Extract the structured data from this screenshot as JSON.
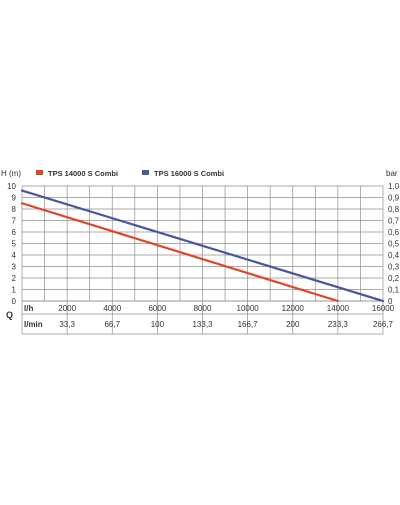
{
  "chart_data": {
    "type": "line",
    "title": "",
    "ylabel_left": "H (m)",
    "ylabel_right": "bar",
    "xlabel_row1": "l/h",
    "xlabel_row2": "l/min",
    "flow_symbol": "Q",
    "xlim": [
      0,
      16000
    ],
    "ylim": [
      0,
      10
    ],
    "y_ticks_left": [
      "0",
      "1",
      "2",
      "3",
      "4",
      "5",
      "6",
      "7",
      "8",
      "9",
      "10"
    ],
    "y_ticks_right": [
      "0",
      "0,1",
      "0,2",
      "0,3",
      "0,4",
      "0,5",
      "0,6",
      "0,7",
      "0,8",
      "0,9",
      "1,0"
    ],
    "x_ticks_lh": [
      "2000",
      "4000",
      "6000",
      "8000",
      "10000",
      "12000",
      "14000",
      "16000"
    ],
    "x_ticks_lmin": [
      "33,3",
      "66,7",
      "100",
      "133,3",
      "166,7",
      "200",
      "233,3",
      "266,7"
    ],
    "grid": true,
    "legend_position": "top",
    "series": [
      {
        "name": "TPS 14000 S Combi",
        "color": "#e0452a",
        "points": [
          [
            0,
            8.5
          ],
          [
            14000,
            0
          ]
        ]
      },
      {
        "name": "TPS 16000 S Combi",
        "color": "#4a56a0",
        "points": [
          [
            0,
            9.6
          ],
          [
            16000,
            0
          ]
        ]
      }
    ]
  }
}
